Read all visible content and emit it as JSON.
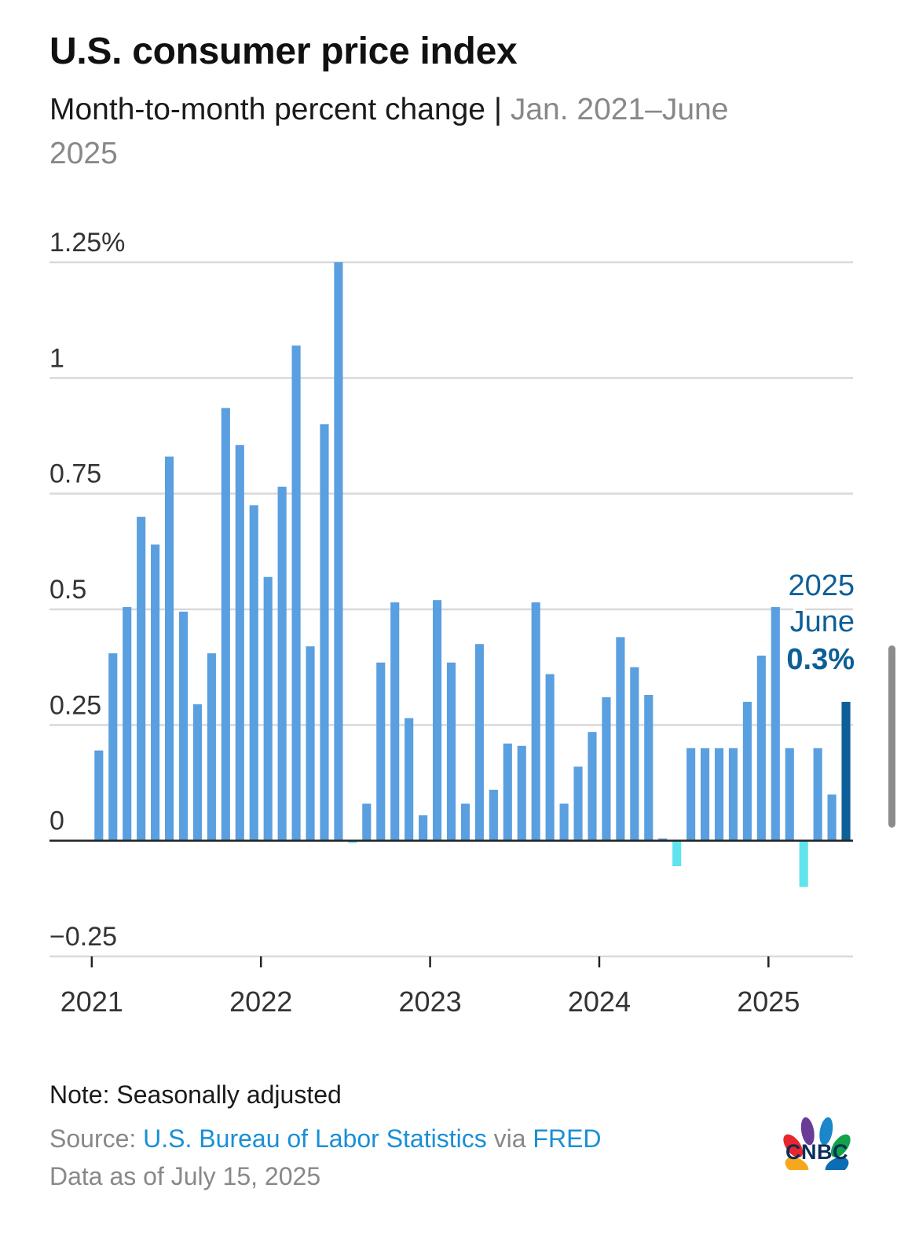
{
  "header": {
    "title": "U.S. consumer price index",
    "subtitle": "Month-to-month percent change",
    "separator": "|",
    "date_range": "Jan. 2021–June 2025"
  },
  "chart_data": {
    "type": "bar",
    "title": "U.S. consumer price index",
    "subtitle": "Month-to-month percent change | Jan. 2021–June 2025",
    "x": [
      "2021-01",
      "2021-02",
      "2021-03",
      "2021-04",
      "2021-05",
      "2021-06",
      "2021-07",
      "2021-08",
      "2021-09",
      "2021-10",
      "2021-11",
      "2021-12",
      "2022-01",
      "2022-02",
      "2022-03",
      "2022-04",
      "2022-05",
      "2022-06",
      "2022-07",
      "2022-08",
      "2022-09",
      "2022-10",
      "2022-11",
      "2022-12",
      "2023-01",
      "2023-02",
      "2023-03",
      "2023-04",
      "2023-05",
      "2023-06",
      "2023-07",
      "2023-08",
      "2023-09",
      "2023-10",
      "2023-11",
      "2023-12",
      "2024-01",
      "2024-02",
      "2024-03",
      "2024-04",
      "2024-05",
      "2024-06",
      "2024-07",
      "2024-08",
      "2024-09",
      "2024-10",
      "2024-11",
      "2024-12",
      "2025-01",
      "2025-02",
      "2025-03",
      "2025-04",
      "2025-05",
      "2025-06"
    ],
    "values": [
      0.195,
      0.405,
      0.505,
      0.7,
      0.64,
      0.83,
      0.495,
      0.295,
      0.405,
      0.935,
      0.855,
      0.725,
      0.57,
      0.765,
      1.07,
      0.42,
      0.9,
      1.25,
      -0.005,
      0.08,
      0.385,
      0.515,
      0.265,
      0.055,
      0.52,
      0.385,
      0.08,
      0.425,
      0.11,
      0.21,
      0.205,
      0.515,
      0.36,
      0.08,
      0.16,
      0.235,
      0.31,
      0.44,
      0.375,
      0.315,
      0.005,
      -0.055,
      0.2,
      0.2,
      0.2,
      0.2,
      0.3,
      0.4,
      0.505,
      0.2,
      -0.1,
      0.2,
      0.1,
      0.3
    ],
    "x_ticks": [
      "2021",
      "2022",
      "2023",
      "2024",
      "2025"
    ],
    "y_ticks": [
      "1.25%",
      "1",
      "0.75",
      "0.5",
      "0.25",
      "0",
      "−0.25"
    ],
    "y_tick_values": [
      1.25,
      1,
      0.75,
      0.5,
      0.25,
      0,
      -0.25
    ],
    "ylim": [
      -0.25,
      1.25
    ],
    "x_range": [
      "2020-10",
      "2025-07"
    ],
    "grid": true,
    "colors": {
      "positive": "#5a9fe0",
      "negative": "#5ee4ee",
      "highlight": "#0d5f97",
      "grid": "#d9d9d9",
      "zero": "#222222",
      "axis_text": "#333333"
    },
    "annotation": {
      "year": "2025",
      "month": "June",
      "value": "0.3%",
      "target_index": 53
    }
  },
  "footer": {
    "note": "Note: Seasonally adjusted",
    "source_prefix": "Source:",
    "source_link1": "U.S. Bureau of Labor Statistics",
    "source_via": "via",
    "source_link2": "FRED",
    "data_date": "Data as of July 15, 2025",
    "logo_text": "CNBC"
  }
}
